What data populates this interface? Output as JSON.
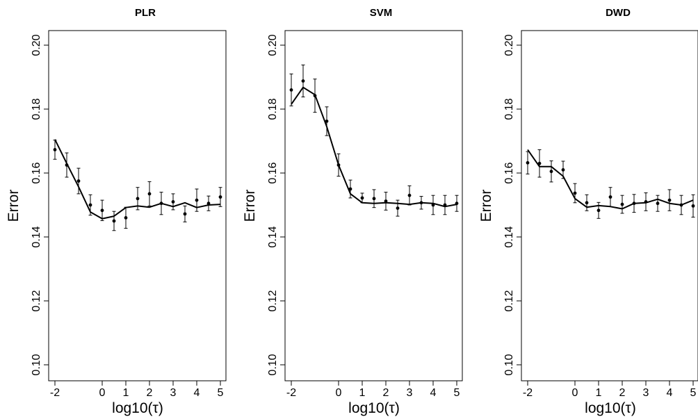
{
  "chart_data": [
    {
      "type": "line",
      "title": "PLR",
      "xlabel": "log10(τ)",
      "ylabel": "Error",
      "xlim": [
        -2,
        5
      ],
      "ylim": [
        0.1,
        0.2
      ],
      "xticks": [
        "-2",
        "0",
        "1",
        "2",
        "3",
        "4",
        "5"
      ],
      "yticks": [
        "0.10",
        "0.12",
        "0.14",
        "0.16",
        "0.18",
        "0.20"
      ],
      "grid": false,
      "x": [
        -2,
        -1.5,
        -1,
        -0.5,
        0,
        0.5,
        1,
        1.5,
        2,
        2.5,
        3,
        3.5,
        4,
        4.5,
        5
      ],
      "series": [
        {
          "style": "line",
          "values": [
            0.1705,
            0.163,
            0.1557,
            0.1478,
            0.1457,
            0.1465,
            0.1492,
            0.1497,
            0.1493,
            0.1505,
            0.1495,
            0.1507,
            0.1492,
            0.15,
            0.1502
          ]
        },
        {
          "style": "points-with-error-bars",
          "values": [
            0.1673,
            0.1625,
            0.1575,
            0.15,
            0.1483,
            0.145,
            0.146,
            0.152,
            0.1535,
            0.1505,
            0.151,
            0.1472,
            0.1515,
            0.1505,
            0.1525
          ],
          "error": [
            0.003,
            0.0038,
            0.004,
            0.0032,
            0.0032,
            0.003,
            0.0033,
            0.0035,
            0.0038,
            0.0035,
            0.0025,
            0.0025,
            0.0035,
            0.0023,
            0.003
          ]
        }
      ]
    },
    {
      "type": "line",
      "title": "SVM",
      "xlabel": "log10(τ)",
      "ylabel": "Error",
      "xlim": [
        -2,
        5
      ],
      "ylim": [
        0.1,
        0.2
      ],
      "xticks": [
        "-2",
        "0",
        "1",
        "2",
        "3",
        "4",
        "5"
      ],
      "yticks": [
        "0.10",
        "0.12",
        "0.14",
        "0.16",
        "0.18",
        "0.20"
      ],
      "grid": false,
      "x": [
        -2,
        -1.5,
        -1,
        -0.5,
        0,
        0.5,
        1,
        1.5,
        2,
        2.5,
        3,
        3.5,
        4,
        4.5,
        5
      ],
      "series": [
        {
          "style": "line",
          "values": [
            0.1815,
            0.1868,
            0.1845,
            0.1745,
            0.1625,
            0.1535,
            0.1507,
            0.1505,
            0.1507,
            0.1505,
            0.1502,
            0.1507,
            0.1505,
            0.1495,
            0.1502
          ]
        },
        {
          "style": "points-with-error-bars",
          "values": [
            0.186,
            0.1888,
            0.1842,
            0.1762,
            0.1625,
            0.155,
            0.1522,
            0.152,
            0.1512,
            0.149,
            0.153,
            0.1507,
            0.15,
            0.15,
            0.1505
          ],
          "error": [
            0.005,
            0.005,
            0.0052,
            0.0045,
            0.0035,
            0.0028,
            0.0015,
            0.0028,
            0.0028,
            0.0025,
            0.003,
            0.002,
            0.003,
            0.003,
            0.0025
          ]
        }
      ]
    },
    {
      "type": "line",
      "title": "DWD",
      "xlabel": "log10(τ)",
      "ylabel": "Error",
      "xlim": [
        -2,
        5
      ],
      "ylim": [
        0.1,
        0.2
      ],
      "xticks": [
        "-2",
        "0",
        "1",
        "2",
        "3",
        "4",
        "5"
      ],
      "yticks": [
        "0.10",
        "0.12",
        "0.14",
        "0.16",
        "0.18",
        "0.20"
      ],
      "grid": false,
      "x": [
        -2,
        -1.5,
        -1,
        -0.5,
        0,
        0.5,
        1,
        1.5,
        2,
        2.5,
        3,
        3.5,
        4,
        4.5,
        5
      ],
      "series": [
        {
          "style": "line",
          "values": [
            0.1673,
            0.162,
            0.162,
            0.159,
            0.152,
            0.1493,
            0.1498,
            0.1495,
            0.1488,
            0.1505,
            0.1507,
            0.1518,
            0.1505,
            0.15,
            0.1515
          ]
        },
        {
          "style": "points-with-error-bars",
          "values": [
            0.1632,
            0.163,
            0.1605,
            0.161,
            0.1537,
            0.1507,
            0.1483,
            0.1525,
            0.1502,
            0.1505,
            0.151,
            0.1505,
            0.1515,
            0.15,
            0.1497
          ],
          "error": [
            0.0035,
            0.0043,
            0.0033,
            0.0027,
            0.003,
            0.0025,
            0.0025,
            0.003,
            0.0028,
            0.0028,
            0.0028,
            0.0025,
            0.0033,
            0.003,
            0.0035
          ]
        }
      ]
    }
  ]
}
